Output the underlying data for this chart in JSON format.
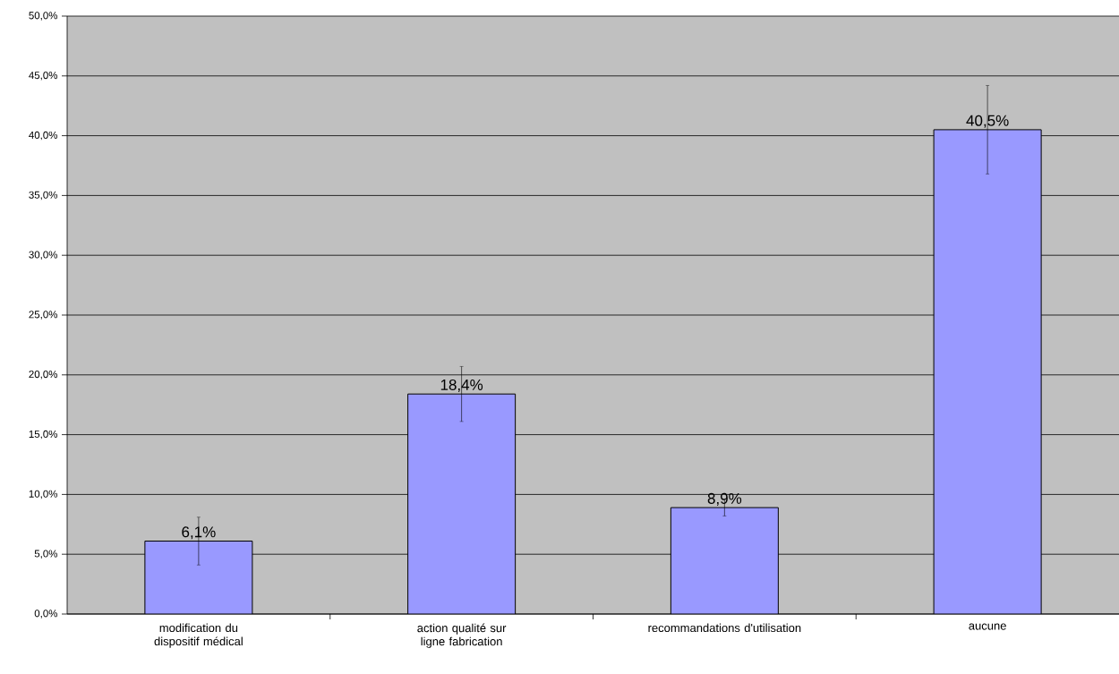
{
  "chart_data": {
    "type": "bar",
    "categories": [
      "modification du dispositif médical",
      "action qualité sur ligne fabrication",
      "recommandations d'utilisation",
      "aucune"
    ],
    "values": [
      6.1,
      18.4,
      8.9,
      40.5
    ],
    "value_labels": [
      "6,1%",
      "18,4%",
      "8,9%",
      "40,5%"
    ],
    "errors": [
      2.0,
      2.3,
      0.7,
      3.7
    ],
    "color": "#9999ff",
    "ylim": [
      0,
      50
    ],
    "yticks": [
      {
        "value": 0,
        "label": "0,0%"
      },
      {
        "value": 5,
        "label": "5,0%"
      },
      {
        "value": 10,
        "label": "10,0%"
      },
      {
        "value": 15,
        "label": "15,0%"
      },
      {
        "value": 20,
        "label": "20,0%"
      },
      {
        "value": 25,
        "label": "25,0%"
      },
      {
        "value": 30,
        "label": "30,0%"
      },
      {
        "value": 35,
        "label": "35,0%"
      },
      {
        "value": 40,
        "label": "40,0%"
      },
      {
        "value": 45,
        "label": "45,0%"
      },
      {
        "value": 50,
        "label": "50,0%"
      }
    ],
    "grid": "y"
  }
}
